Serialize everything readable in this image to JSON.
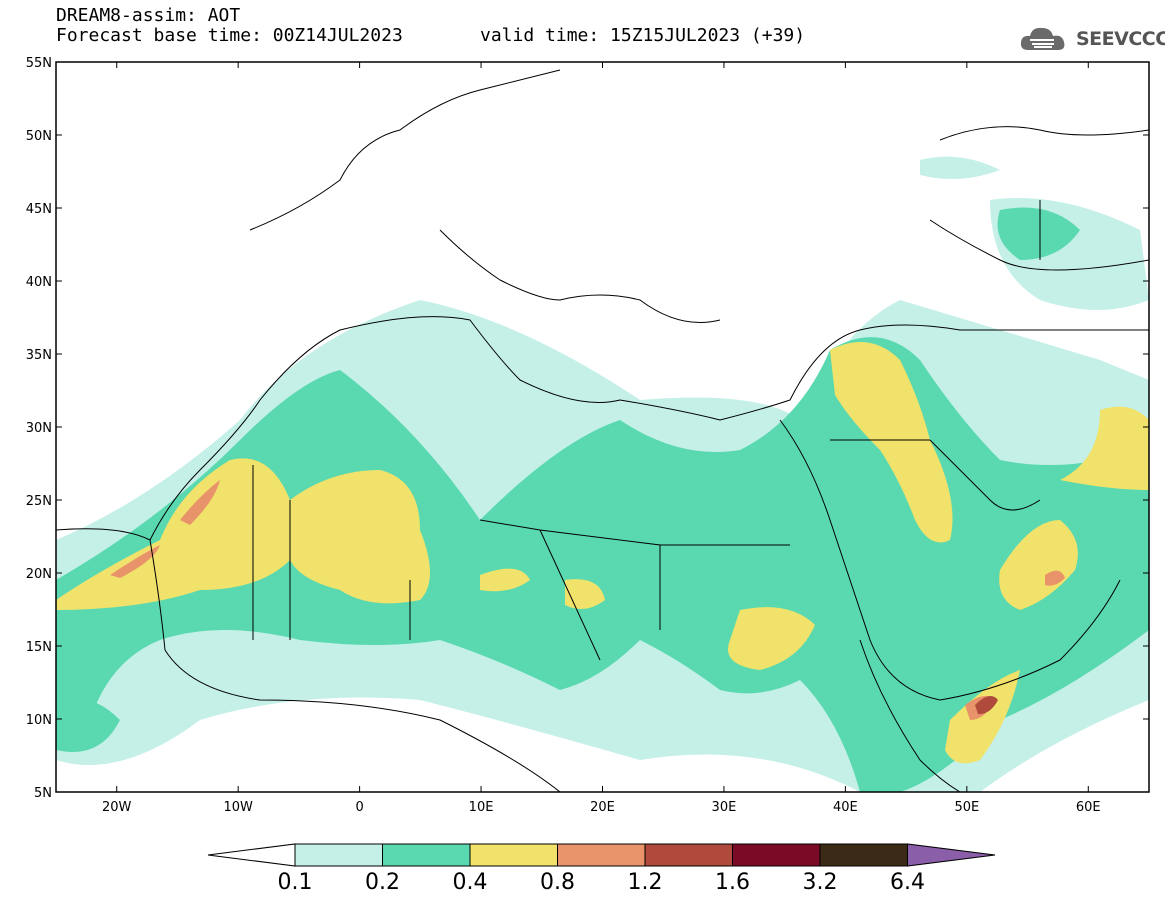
{
  "header": {
    "title_line1": "DREAM8-assim: AOT",
    "title_line2": "Forecast base time: 00Z14JUL2023",
    "valid_time": "valid time: 15Z15JUL2023 (+39)"
  },
  "logo": {
    "text": "SEEVCCC",
    "icon": "cloud-icon"
  },
  "map": {
    "lon_range": [
      -25,
      65
    ],
    "lat_range": [
      5,
      55
    ],
    "lat_labels": [
      "55N",
      "50N",
      "45N",
      "40N",
      "35N",
      "30N",
      "25N",
      "20N",
      "15N",
      "10N",
      "5N"
    ],
    "lon_labels": [
      "20W",
      "10W",
      "0",
      "10E",
      "20E",
      "30E",
      "40E",
      "50E",
      "60E"
    ],
    "lat_values": [
      55,
      50,
      45,
      40,
      35,
      30,
      25,
      20,
      15,
      10,
      5
    ],
    "lon_values": [
      -20,
      -10,
      0,
      10,
      20,
      30,
      40,
      50,
      60
    ]
  },
  "colorbar": {
    "labels": [
      "0.1",
      "0.2",
      "0.4",
      "0.8",
      "1.2",
      "1.6",
      "3.2",
      "6.4"
    ],
    "colors": [
      "#c5f0e8",
      "#5ad9b0",
      "#f0e26a",
      "#e8936a",
      "#b04a3c",
      "#7a0a26",
      "#3a2a16",
      "#8a5ea8"
    ]
  }
}
